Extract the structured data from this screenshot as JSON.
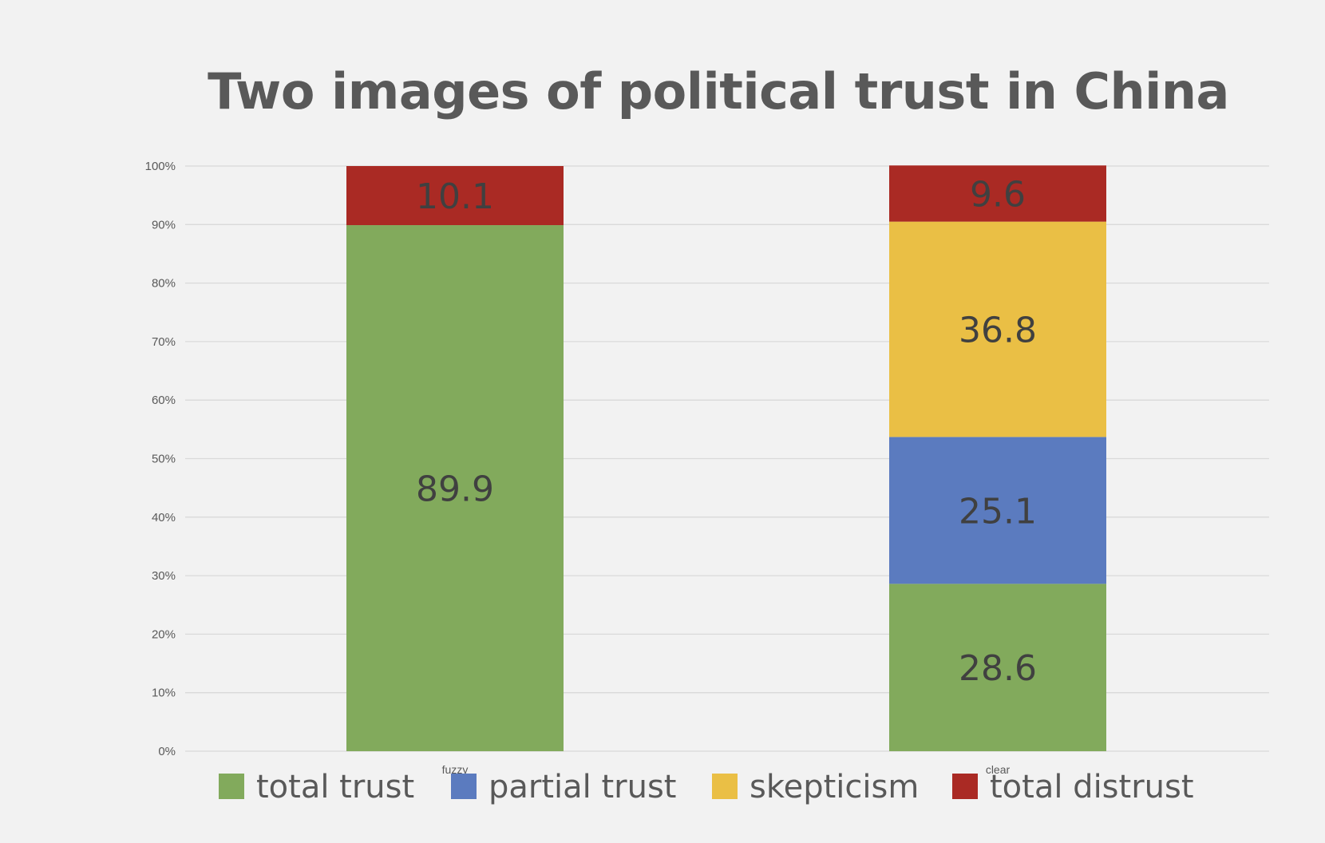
{
  "chart_data": {
    "type": "bar",
    "stacked": true,
    "percent": true,
    "title": "Two images of political trust in China",
    "categories": [
      "fuzzy",
      "clear"
    ],
    "series": [
      {
        "name": "total trust",
        "color": "#82aa5c",
        "values": [
          89.9,
          28.6
        ]
      },
      {
        "name": "partial trust",
        "color": "#5b7bbf",
        "values": [
          null,
          25.1
        ]
      },
      {
        "name": "skepticism",
        "color": "#eabf45",
        "values": [
          null,
          36.8
        ]
      },
      {
        "name": "total distrust",
        "color": "#aa2a24",
        "values": [
          10.1,
          9.6
        ]
      }
    ],
    "yticks": [
      "0%",
      "10%",
      "20%",
      "30%",
      "40%",
      "50%",
      "60%",
      "70%",
      "80%",
      "90%",
      "100%"
    ],
    "ylim": [
      0,
      100
    ],
    "grid": true,
    "legend": "bottom"
  }
}
